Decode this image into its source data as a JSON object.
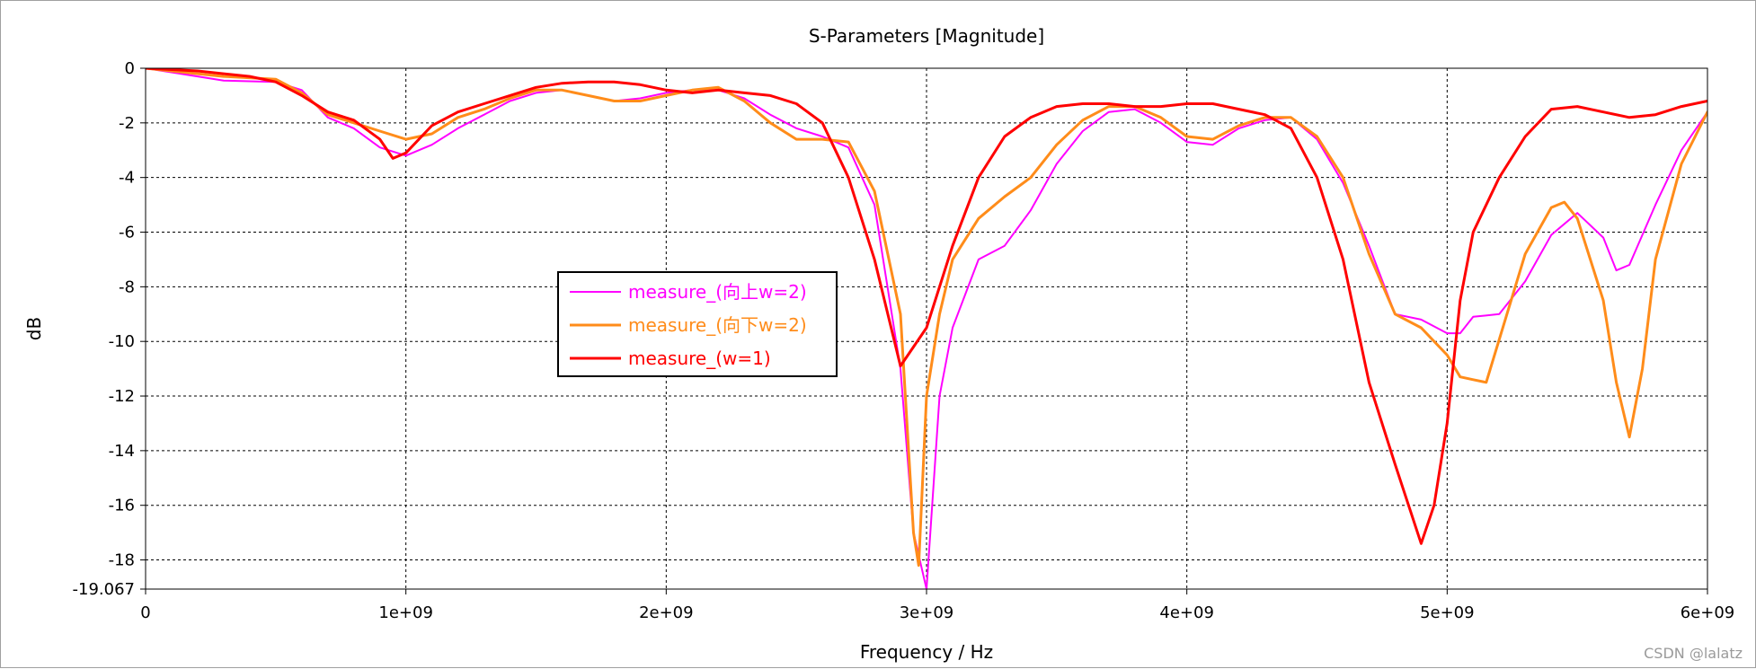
{
  "watermark": "CSDN @lalatz",
  "chart_data": {
    "type": "line",
    "title": "S-Parameters [Magnitude]",
    "xlabel": "Frequency / Hz",
    "ylabel": "dB",
    "xlim": [
      0,
      6000000000
    ],
    "ylim": [
      -19.067,
      0
    ],
    "x_ticks": [
      {
        "value": 0,
        "label": "0"
      },
      {
        "value": 1000000000,
        "label": "1e+09"
      },
      {
        "value": 2000000000,
        "label": "2e+09"
      },
      {
        "value": 3000000000,
        "label": "3e+09"
      },
      {
        "value": 4000000000,
        "label": "4e+09"
      },
      {
        "value": 5000000000,
        "label": "5e+09"
      },
      {
        "value": 6000000000,
        "label": "6e+09"
      }
    ],
    "y_ticks": [
      {
        "value": 0,
        "label": "0"
      },
      {
        "value": -2,
        "label": "-2"
      },
      {
        "value": -4,
        "label": "-4"
      },
      {
        "value": -6,
        "label": "-6"
      },
      {
        "value": -8,
        "label": "-8"
      },
      {
        "value": -10,
        "label": "-10"
      },
      {
        "value": -12,
        "label": "-12"
      },
      {
        "value": -14,
        "label": "-14"
      },
      {
        "value": -16,
        "label": "-16"
      },
      {
        "value": -18,
        "label": "-18"
      },
      {
        "value": -19.067,
        "label": "-19.067"
      }
    ],
    "grid": true,
    "legend_position": "center-left",
    "series": [
      {
        "name": "measure_(向上w=2)",
        "color": "#ff00ff",
        "width": 2,
        "points": [
          [
            0,
            0
          ],
          [
            200000000,
            -0.3
          ],
          [
            300000000,
            -0.45
          ],
          [
            500000000,
            -0.5
          ],
          [
            600000000,
            -0.8
          ],
          [
            700000000,
            -1.8
          ],
          [
            800000000,
            -2.2
          ],
          [
            900000000,
            -2.9
          ],
          [
            1000000000,
            -3.2
          ],
          [
            1100000000,
            -2.8
          ],
          [
            1200000000,
            -2.2
          ],
          [
            1300000000,
            -1.7
          ],
          [
            1400000000,
            -1.2
          ],
          [
            1500000000,
            -0.9
          ],
          [
            1600000000,
            -0.8
          ],
          [
            1700000000,
            -1.0
          ],
          [
            1800000000,
            -1.2
          ],
          [
            1900000000,
            -1.1
          ],
          [
            2000000000,
            -0.9
          ],
          [
            2100000000,
            -0.8
          ],
          [
            2200000000,
            -0.8
          ],
          [
            2300000000,
            -1.1
          ],
          [
            2400000000,
            -1.7
          ],
          [
            2500000000,
            -2.2
          ],
          [
            2600000000,
            -2.5
          ],
          [
            2700000000,
            -2.9
          ],
          [
            2800000000,
            -5.0
          ],
          [
            2900000000,
            -11.0
          ],
          [
            2950000000,
            -17.0
          ],
          [
            3000000000,
            -19.067
          ],
          [
            3050000000,
            -12.0
          ],
          [
            3100000000,
            -9.5
          ],
          [
            3200000000,
            -7.0
          ],
          [
            3300000000,
            -6.5
          ],
          [
            3400000000,
            -5.2
          ],
          [
            3500000000,
            -3.5
          ],
          [
            3600000000,
            -2.3
          ],
          [
            3700000000,
            -1.6
          ],
          [
            3800000000,
            -1.5
          ],
          [
            3900000000,
            -2.0
          ],
          [
            4000000000,
            -2.7
          ],
          [
            4100000000,
            -2.8
          ],
          [
            4200000000,
            -2.2
          ],
          [
            4300000000,
            -1.9
          ],
          [
            4400000000,
            -1.8
          ],
          [
            4500000000,
            -2.6
          ],
          [
            4600000000,
            -4.2
          ],
          [
            4700000000,
            -6.5
          ],
          [
            4800000000,
            -9.0
          ],
          [
            4900000000,
            -9.2
          ],
          [
            5000000000,
            -9.7
          ],
          [
            5050000000,
            -9.7
          ],
          [
            5100000000,
            -9.1
          ],
          [
            5200000000,
            -9.0
          ],
          [
            5300000000,
            -7.8
          ],
          [
            5400000000,
            -6.1
          ],
          [
            5500000000,
            -5.3
          ],
          [
            5600000000,
            -6.2
          ],
          [
            5650000000,
            -7.4
          ],
          [
            5700000000,
            -7.2
          ],
          [
            5800000000,
            -5.0
          ],
          [
            5900000000,
            -3.0
          ],
          [
            6000000000,
            -1.6
          ]
        ]
      },
      {
        "name": "measure_(向下w=2)",
        "color": "#ff8c1a",
        "width": 3,
        "points": [
          [
            0,
            0
          ],
          [
            200000000,
            -0.2
          ],
          [
            300000000,
            -0.3
          ],
          [
            500000000,
            -0.4
          ],
          [
            600000000,
            -0.9
          ],
          [
            700000000,
            -1.7
          ],
          [
            800000000,
            -2.0
          ],
          [
            900000000,
            -2.3
          ],
          [
            1000000000,
            -2.6
          ],
          [
            1100000000,
            -2.4
          ],
          [
            1200000000,
            -1.8
          ],
          [
            1300000000,
            -1.5
          ],
          [
            1400000000,
            -1.1
          ],
          [
            1500000000,
            -0.8
          ],
          [
            1600000000,
            -0.8
          ],
          [
            1700000000,
            -1.0
          ],
          [
            1800000000,
            -1.2
          ],
          [
            1900000000,
            -1.2
          ],
          [
            2000000000,
            -1.0
          ],
          [
            2100000000,
            -0.8
          ],
          [
            2200000000,
            -0.7
          ],
          [
            2300000000,
            -1.2
          ],
          [
            2400000000,
            -2.0
          ],
          [
            2500000000,
            -2.6
          ],
          [
            2600000000,
            -2.6
          ],
          [
            2700000000,
            -2.7
          ],
          [
            2800000000,
            -4.5
          ],
          [
            2900000000,
            -9.0
          ],
          [
            2950000000,
            -17.0
          ],
          [
            2970000000,
            -18.2
          ],
          [
            3000000000,
            -12.0
          ],
          [
            3050000000,
            -9.0
          ],
          [
            3100000000,
            -7.0
          ],
          [
            3200000000,
            -5.5
          ],
          [
            3300000000,
            -4.7
          ],
          [
            3400000000,
            -4.0
          ],
          [
            3500000000,
            -2.8
          ],
          [
            3600000000,
            -1.9
          ],
          [
            3700000000,
            -1.4
          ],
          [
            3800000000,
            -1.4
          ],
          [
            3900000000,
            -1.8
          ],
          [
            4000000000,
            -2.5
          ],
          [
            4100000000,
            -2.6
          ],
          [
            4200000000,
            -2.1
          ],
          [
            4300000000,
            -1.8
          ],
          [
            4400000000,
            -1.8
          ],
          [
            4500000000,
            -2.5
          ],
          [
            4600000000,
            -4.0
          ],
          [
            4700000000,
            -6.8
          ],
          [
            4800000000,
            -9.0
          ],
          [
            4900000000,
            -9.5
          ],
          [
            5000000000,
            -10.5
          ],
          [
            5050000000,
            -11.3
          ],
          [
            5100000000,
            -11.4
          ],
          [
            5150000000,
            -11.5
          ],
          [
            5300000000,
            -6.8
          ],
          [
            5400000000,
            -5.1
          ],
          [
            5450000000,
            -4.9
          ],
          [
            5500000000,
            -5.5
          ],
          [
            5600000000,
            -8.5
          ],
          [
            5650000000,
            -11.5
          ],
          [
            5700000000,
            -13.5
          ],
          [
            5750000000,
            -11.0
          ],
          [
            5800000000,
            -7.0
          ],
          [
            5900000000,
            -3.5
          ],
          [
            6000000000,
            -1.6
          ]
        ]
      },
      {
        "name": "measure_(w=1)",
        "color": "#ff0000",
        "width": 3,
        "points": [
          [
            0,
            0
          ],
          [
            200000000,
            -0.1
          ],
          [
            300000000,
            -0.2
          ],
          [
            400000000,
            -0.3
          ],
          [
            500000000,
            -0.5
          ],
          [
            600000000,
            -1.0
          ],
          [
            700000000,
            -1.6
          ],
          [
            800000000,
            -1.9
          ],
          [
            900000000,
            -2.6
          ],
          [
            950000000,
            -3.3
          ],
          [
            1000000000,
            -3.1
          ],
          [
            1100000000,
            -2.1
          ],
          [
            1200000000,
            -1.6
          ],
          [
            1300000000,
            -1.3
          ],
          [
            1400000000,
            -1.0
          ],
          [
            1500000000,
            -0.7
          ],
          [
            1600000000,
            -0.55
          ],
          [
            1700000000,
            -0.5
          ],
          [
            1800000000,
            -0.5
          ],
          [
            1900000000,
            -0.6
          ],
          [
            2000000000,
            -0.8
          ],
          [
            2100000000,
            -0.9
          ],
          [
            2200000000,
            -0.8
          ],
          [
            2300000000,
            -0.9
          ],
          [
            2400000000,
            -1.0
          ],
          [
            2500000000,
            -1.3
          ],
          [
            2600000000,
            -2.0
          ],
          [
            2700000000,
            -4.0
          ],
          [
            2800000000,
            -7.0
          ],
          [
            2900000000,
            -10.9
          ],
          [
            3000000000,
            -9.5
          ],
          [
            3100000000,
            -6.5
          ],
          [
            3200000000,
            -4.0
          ],
          [
            3300000000,
            -2.5
          ],
          [
            3400000000,
            -1.8
          ],
          [
            3500000000,
            -1.4
          ],
          [
            3600000000,
            -1.3
          ],
          [
            3700000000,
            -1.3
          ],
          [
            3800000000,
            -1.4
          ],
          [
            3900000000,
            -1.4
          ],
          [
            4000000000,
            -1.3
          ],
          [
            4100000000,
            -1.3
          ],
          [
            4200000000,
            -1.5
          ],
          [
            4300000000,
            -1.7
          ],
          [
            4400000000,
            -2.2
          ],
          [
            4500000000,
            -4.0
          ],
          [
            4600000000,
            -7.0
          ],
          [
            4700000000,
            -11.5
          ],
          [
            4800000000,
            -14.5
          ],
          [
            4900000000,
            -17.4
          ],
          [
            4950000000,
            -16.0
          ],
          [
            5000000000,
            -13.0
          ],
          [
            5050000000,
            -8.5
          ],
          [
            5100000000,
            -6.0
          ],
          [
            5200000000,
            -4.0
          ],
          [
            5300000000,
            -2.5
          ],
          [
            5400000000,
            -1.5
          ],
          [
            5500000000,
            -1.4
          ],
          [
            5600000000,
            -1.6
          ],
          [
            5700000000,
            -1.8
          ],
          [
            5800000000,
            -1.7
          ],
          [
            5900000000,
            -1.4
          ],
          [
            6000000000,
            -1.2
          ]
        ]
      }
    ]
  }
}
